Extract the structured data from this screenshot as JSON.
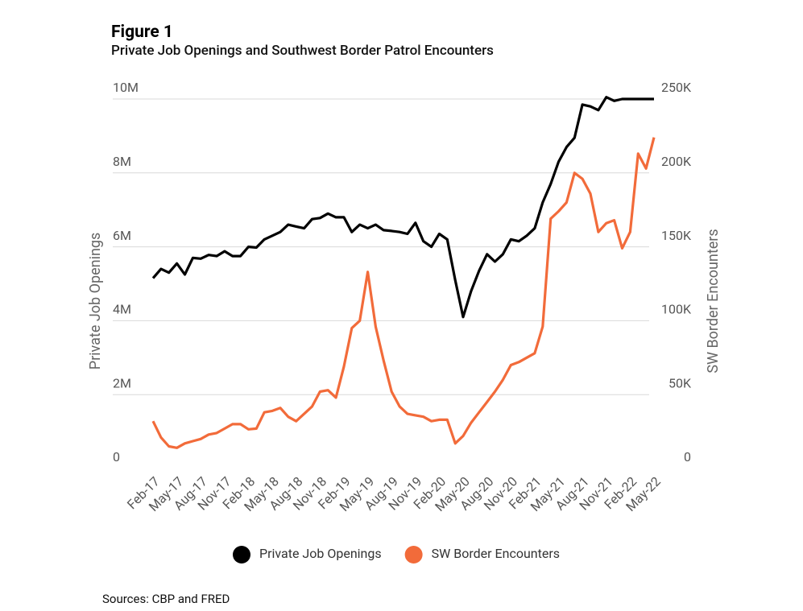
{
  "chart_data": {
    "type": "line",
    "title": "Figure 1",
    "subtitle": "Private Job Openings and Southwest Border Patrol Encounters",
    "ylabel": "Private Job Openings",
    "y2label": "SW Border Encounters",
    "source": "Sources: CBP and FRED",
    "categories": [
      "Feb-17",
      null,
      null,
      "May-17",
      null,
      null,
      "Aug-17",
      null,
      null,
      "Nov-17",
      null,
      null,
      "Feb-18",
      null,
      null,
      "May-18",
      null,
      null,
      "Aug-18",
      null,
      null,
      "Nov-18",
      null,
      null,
      "Feb-19",
      null,
      null,
      "May-19",
      null,
      null,
      "Aug-19",
      null,
      null,
      "Nov-19",
      null,
      null,
      "Feb-20",
      null,
      null,
      "May-20",
      null,
      null,
      "Aug-20",
      null,
      null,
      "Nov-20",
      null,
      null,
      "Feb-21",
      null,
      null,
      "May-21",
      null,
      null,
      "Aug-21",
      null,
      null,
      "Nov-21",
      null,
      null,
      "Feb-22",
      null,
      null,
      "May-22"
    ],
    "series": [
      {
        "name": "Private Job Openings",
        "color": "#000000",
        "values": [
          5150000,
          5400000,
          5300000,
          5550000,
          5250000,
          5700000,
          5680000,
          5780000,
          5750000,
          5880000,
          5750000,
          5750000,
          6000000,
          5980000,
          6200000,
          6300000,
          6400000,
          6600000,
          6550000,
          6500000,
          6750000,
          6780000,
          6900000,
          6800000,
          6800000,
          6400000,
          6600000,
          6500000,
          6600000,
          6450000,
          6430000,
          6400000,
          6350000,
          6650000,
          6150000,
          6000000,
          6350000,
          6200000,
          5100000,
          4100000,
          4800000,
          5350000,
          5800000,
          5600000,
          5800000,
          6200000,
          6150000,
          6300000,
          6500000,
          7200000,
          7700000,
          8300000,
          8700000,
          8950000,
          9850000,
          9800000,
          9700000,
          10050000,
          9950000,
          10000000,
          10000000,
          10000000,
          10000000,
          10000000
        ]
      },
      {
        "name": "SW Border Encounters",
        "color": "#f26b3a",
        "axis": "y2",
        "values": [
          32000,
          21000,
          15000,
          14000,
          17000,
          18500,
          20000,
          23000,
          24000,
          27000,
          30000,
          30000,
          26500,
          27000,
          38000,
          39000,
          41000,
          35000,
          32000,
          37000,
          42000,
          52000,
          53000,
          48000,
          69000,
          95000,
          100000,
          133000,
          96000,
          73000,
          52000,
          42000,
          37000,
          36000,
          35000,
          32000,
          33000,
          33000,
          17000,
          22000,
          31000,
          38000,
          45000,
          52000,
          60000,
          70000,
          72000,
          75000,
          78000,
          96000,
          169000,
          174000,
          180000,
          200000,
          196000,
          186000,
          160000,
          166000,
          168000,
          149000,
          160000,
          213000,
          203000,
          224000
        ]
      }
    ],
    "ylim": [
      0,
      10000000
    ],
    "yticks": [
      0,
      {
        "value": 2000000,
        "label": "2M"
      },
      {
        "value": 4000000,
        "label": "4M"
      },
      {
        "value": 6000000,
        "label": "6M"
      },
      {
        "value": 8000000,
        "label": "8M"
      },
      {
        "value": 10000000,
        "label": "10M"
      }
    ],
    "y2lim": [
      0,
      250000
    ],
    "y2ticks": [
      0,
      {
        "value": 50000,
        "label": "50K"
      },
      {
        "value": 100000,
        "label": "100K"
      },
      {
        "value": 150000,
        "label": "150K"
      },
      {
        "value": 200000,
        "label": "200K"
      },
      {
        "value": 250000,
        "label": "250K"
      }
    ],
    "grid": true,
    "legend": "bottom"
  }
}
